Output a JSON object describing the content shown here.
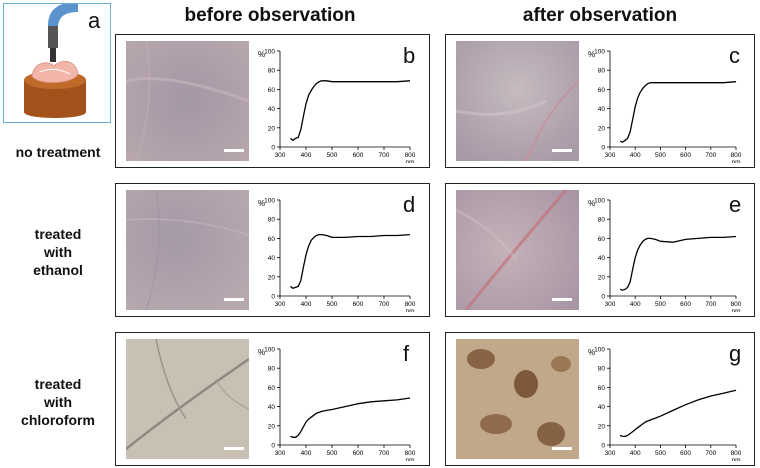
{
  "figure": {
    "col_titles": [
      "before observation",
      "after observation"
    ],
    "inset_letter": "a",
    "rows": [
      {
        "label_lines": [
          "no treatment"
        ]
      },
      {
        "label_lines": [
          "treated",
          "with",
          "ethanol"
        ]
      },
      {
        "label_lines": [
          "treated",
          "with",
          "chloroform"
        ]
      }
    ],
    "colors": {
      "photo_light_pink": "#b9a9b1",
      "photo_beige": "#c9c0b4",
      "photo_brown": "#a88a6a",
      "curve": "#000000",
      "inset_border": "#6aaede",
      "holder_wood": "#a3521c",
      "probe_blue": "#5b93cf"
    }
  },
  "chart_data": [
    {
      "id": "b",
      "type": "line",
      "letter": "b",
      "y_unit": "%",
      "x_unit": "nm",
      "xlim": [
        300,
        800
      ],
      "ylim": [
        0,
        100
      ],
      "x_ticks": [
        300,
        400,
        500,
        600,
        700,
        800
      ],
      "y_ticks": [
        0,
        20,
        40,
        60,
        80,
        100
      ],
      "x": [
        340,
        350,
        360,
        370,
        380,
        390,
        400,
        410,
        420,
        430,
        440,
        450,
        460,
        480,
        500,
        550,
        600,
        650,
        700,
        750,
        800
      ],
      "y": [
        9,
        7,
        9,
        10,
        18,
        32,
        45,
        54,
        59,
        63,
        66,
        68,
        69,
        69,
        68,
        68,
        68,
        68,
        68,
        68,
        69
      ]
    },
    {
      "id": "c",
      "type": "line",
      "letter": "c",
      "y_unit": "%",
      "x_unit": "nm",
      "xlim": [
        300,
        800
      ],
      "ylim": [
        0,
        100
      ],
      "x_ticks": [
        300,
        400,
        500,
        600,
        700,
        800
      ],
      "y_ticks": [
        0,
        20,
        40,
        60,
        80,
        100
      ],
      "x": [
        340,
        350,
        360,
        370,
        380,
        390,
        400,
        410,
        420,
        430,
        440,
        450,
        460,
        480,
        500,
        550,
        600,
        650,
        700,
        750,
        800
      ],
      "y": [
        6,
        5,
        7,
        9,
        16,
        29,
        42,
        51,
        57,
        61,
        64,
        66,
        67,
        67,
        67,
        67,
        67,
        67,
        67,
        67,
        68
      ]
    },
    {
      "id": "d",
      "type": "line",
      "letter": "d",
      "y_unit": "%",
      "x_unit": "nm",
      "xlim": [
        300,
        800
      ],
      "ylim": [
        0,
        100
      ],
      "x_ticks": [
        300,
        400,
        500,
        600,
        700,
        800
      ],
      "y_ticks": [
        0,
        20,
        40,
        60,
        80,
        100
      ],
      "x": [
        340,
        350,
        360,
        370,
        380,
        390,
        400,
        410,
        420,
        430,
        440,
        450,
        460,
        480,
        500,
        550,
        600,
        650,
        700,
        750,
        800
      ],
      "y": [
        10,
        8,
        9,
        10,
        16,
        30,
        43,
        52,
        58,
        61,
        63,
        64,
        64,
        63,
        61,
        61,
        62,
        62,
        63,
        63,
        64
      ]
    },
    {
      "id": "e",
      "type": "line",
      "letter": "e",
      "y_unit": "%",
      "x_unit": "nm",
      "xlim": [
        300,
        800
      ],
      "ylim": [
        0,
        100
      ],
      "x_ticks": [
        300,
        400,
        500,
        600,
        700,
        800
      ],
      "y_ticks": [
        0,
        20,
        40,
        60,
        80,
        100
      ],
      "x": [
        340,
        350,
        360,
        370,
        380,
        390,
        400,
        410,
        420,
        430,
        440,
        450,
        460,
        480,
        500,
        550,
        600,
        650,
        700,
        750,
        800
      ],
      "y": [
        7,
        6,
        7,
        9,
        15,
        28,
        40,
        48,
        53,
        57,
        59,
        60,
        60,
        59,
        57,
        56,
        59,
        60,
        61,
        61,
        62
      ]
    },
    {
      "id": "f",
      "type": "line",
      "letter": "f",
      "y_unit": "%",
      "x_unit": "nm",
      "xlim": [
        300,
        800
      ],
      "ylim": [
        0,
        100
      ],
      "x_ticks": [
        300,
        400,
        500,
        600,
        700,
        800
      ],
      "y_ticks": [
        0,
        20,
        40,
        60,
        80,
        100
      ],
      "x": [
        340,
        350,
        360,
        370,
        380,
        390,
        400,
        410,
        420,
        430,
        440,
        450,
        460,
        480,
        500,
        550,
        600,
        650,
        700,
        750,
        800
      ],
      "y": [
        9,
        8,
        8,
        10,
        14,
        19,
        24,
        27,
        29,
        31,
        33,
        34,
        35,
        36,
        37,
        40,
        43,
        45,
        46,
        47,
        49
      ]
    },
    {
      "id": "g",
      "type": "line",
      "letter": "g",
      "y_unit": "%",
      "x_unit": "nm",
      "xlim": [
        300,
        800
      ],
      "ylim": [
        0,
        100
      ],
      "x_ticks": [
        300,
        400,
        500,
        600,
        700,
        800
      ],
      "y_ticks": [
        0,
        20,
        40,
        60,
        80,
        100
      ],
      "x": [
        340,
        350,
        360,
        370,
        380,
        390,
        400,
        410,
        420,
        430,
        440,
        450,
        460,
        480,
        500,
        550,
        600,
        650,
        700,
        750,
        800
      ],
      "y": [
        10,
        9,
        9,
        10,
        12,
        14,
        16,
        18,
        20,
        22,
        24,
        25,
        26,
        28,
        30,
        36,
        42,
        47,
        51,
        54,
        57
      ]
    }
  ]
}
